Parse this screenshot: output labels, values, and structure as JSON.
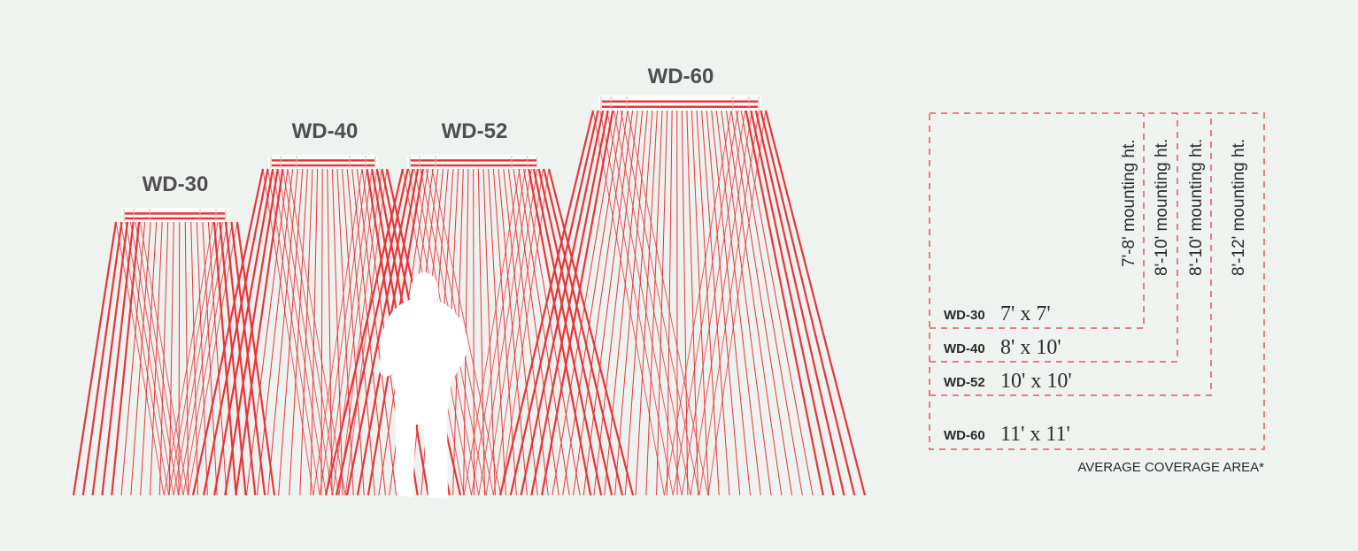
{
  "heaters": [
    {
      "model": "WD-30",
      "lines": 22
    },
    {
      "model": "WD-40",
      "lines": 26
    },
    {
      "model": "WD-52",
      "lines": 30
    },
    {
      "model": "WD-60",
      "lines": 36
    }
  ],
  "legend": {
    "rows": [
      {
        "model": "WD-30",
        "area": "7' x 7'",
        "mounting": "7'-8' mounting ht."
      },
      {
        "model": "WD-40",
        "area": "8' x 10'",
        "mounting": "8'-10' mounting ht."
      },
      {
        "model": "WD-52",
        "area": "10' x 10'",
        "mounting": "8'-10' mounting ht."
      },
      {
        "model": "WD-60",
        "area": "11' x 11'",
        "mounting": "8'-12' mounting ht."
      }
    ],
    "caption": "AVERAGE COVERAGE AREA*"
  },
  "colors": {
    "background": "#eff3ef",
    "beam": "#e8343a",
    "dashed_box": "#e87c7f",
    "text": "#2a2a2a"
  }
}
